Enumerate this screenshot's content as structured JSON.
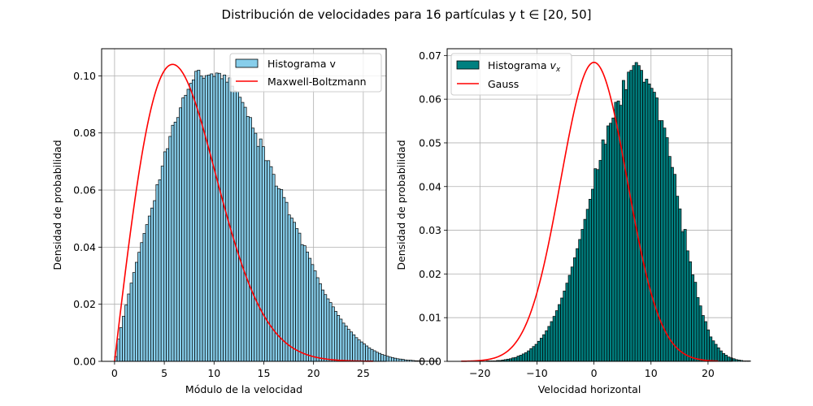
{
  "figure": {
    "title": "Distribución de velocidades para 16 partículas y t ∈ [20, 50]"
  },
  "chart_data": [
    {
      "type": "bar",
      "xlabel": "Módulo de la velocidad",
      "ylabel": "Densidad de probabilidad",
      "xlim": [
        -1.3,
        27.3
      ],
      "ylim": [
        0,
        0.1095
      ],
      "xticks": [
        0,
        5,
        10,
        15,
        20,
        25
      ],
      "yticks": [
        0.0,
        0.02,
        0.04,
        0.06,
        0.08,
        0.1
      ],
      "xtick_labels": [
        "0",
        "5",
        "10",
        "15",
        "20",
        "25"
      ],
      "ytick_labels": [
        "0.00",
        "0.02",
        "0.04",
        "0.06",
        "0.08",
        "0.10"
      ],
      "grid": true,
      "legend_position": "upper right",
      "bin_start": 0.0,
      "bin_width": 0.26,
      "histogram": {
        "name": "Histograma v",
        "color": "#87ceeb",
        "edgecolor": "#000000",
        "values": [
          0.0017,
          0.0078,
          0.0118,
          0.0158,
          0.0197,
          0.0236,
          0.0274,
          0.0311,
          0.0347,
          0.0382,
          0.0416,
          0.0448,
          0.0479,
          0.0509,
          0.0537,
          0.0563,
          0.0619,
          0.0636,
          0.0684,
          0.0734,
          0.0745,
          0.0788,
          0.0827,
          0.0838,
          0.0854,
          0.0888,
          0.0923,
          0.0932,
          0.0953,
          0.0974,
          0.0986,
          0.1016,
          0.102,
          0.1,
          0.0992,
          0.1001,
          0.1003,
          0.1007,
          0.0998,
          0.101,
          0.1009,
          0.099,
          0.1003,
          0.0978,
          0.0993,
          0.0964,
          0.0947,
          0.0945,
          0.0925,
          0.0907,
          0.089,
          0.0858,
          0.0854,
          0.0817,
          0.0799,
          0.0753,
          0.0779,
          0.0752,
          0.0703,
          0.0703,
          0.0682,
          0.0655,
          0.0614,
          0.0605,
          0.0602,
          0.0574,
          0.0557,
          0.0513,
          0.0502,
          0.0487,
          0.0465,
          0.0449,
          0.0409,
          0.0405,
          0.0383,
          0.0361,
          0.0339,
          0.0317,
          0.0293,
          0.0272,
          0.025,
          0.0234,
          0.0219,
          0.0206,
          0.0191,
          0.0175,
          0.0161,
          0.0148,
          0.0134,
          0.0124,
          0.0112,
          0.0103,
          0.0093,
          0.0083,
          0.0075,
          0.0068,
          0.0061,
          0.0054,
          0.0047,
          0.0042,
          0.0037,
          0.0032,
          0.0028,
          0.0024,
          0.0021,
          0.0018,
          0.0015,
          0.0013,
          0.0011,
          0.0009,
          0.0008,
          0.0007,
          0.0005,
          0.0004,
          0.0004,
          0.0003,
          0.0002,
          0.0002,
          0.0002,
          0.0001,
          0.0001,
          0.0001,
          0.0001,
          0.0001,
          0.0001,
          0.0,
          0.0,
          0.0,
          0.0,
          0.0,
          0.0,
          0.0,
          0.0,
          0.0,
          0.0,
          0.0,
          0.0,
          0.0,
          0.0,
          0.0
        ]
      },
      "curve": {
        "name": "Maxwell-Boltzmann",
        "color": "#ff0000",
        "model": "a·v·exp(-a·v²/2)",
        "a": 0.02941,
        "x_range": [
          0,
          26
        ]
      }
    },
    {
      "type": "bar",
      "xlabel": "Velocidad horizontal",
      "ylabel": "Densidad de probabilidad",
      "xlim": [
        -25.75,
        24.15
      ],
      "ylim": [
        0,
        0.07155
      ],
      "xticks": [
        -20,
        -10,
        0,
        10,
        20
      ],
      "yticks": [
        0.0,
        0.01,
        0.02,
        0.03,
        0.04,
        0.05,
        0.06,
        0.07
      ],
      "xtick_labels": [
        "−20",
        "−10",
        "0",
        "10",
        "20"
      ],
      "ytick_labels": [
        "0.00",
        "0.01",
        "0.02",
        "0.03",
        "0.04",
        "0.05",
        "0.06",
        "0.07"
      ],
      "grid": true,
      "legend_position": "upper left",
      "bin_start": -23.4,
      "bin_width": 0.45,
      "histogram": {
        "name": "Histograma v_x",
        "name_main": "Histograma ",
        "name_math": "v",
        "name_sub": "x",
        "color": "#008080",
        "edgecolor": "#000000",
        "values": [
          0.0,
          0.0,
          0.0,
          0.0,
          0.0,
          0.0,
          0.0,
          0.0,
          0.0,
          0.0,
          0.0001,
          0.0001,
          0.0001,
          0.0001,
          0.0002,
          0.0002,
          0.0003,
          0.0004,
          0.0005,
          0.0006,
          0.0008,
          0.0009,
          0.0012,
          0.0014,
          0.0017,
          0.002,
          0.0024,
          0.0029,
          0.0034,
          0.0039,
          0.0046,
          0.0053,
          0.0061,
          0.007,
          0.008,
          0.0091,
          0.0103,
          0.0116,
          0.013,
          0.0145,
          0.0161,
          0.0179,
          0.0197,
          0.0216,
          0.0237,
          0.0258,
          0.0279,
          0.0302,
          0.0325,
          0.0348,
          0.0371,
          0.0394,
          0.0441,
          0.0439,
          0.046,
          0.0507,
          0.0497,
          0.0539,
          0.0545,
          0.0557,
          0.0593,
          0.0596,
          0.0586,
          0.0643,
          0.0622,
          0.0662,
          0.0666,
          0.0677,
          0.0684,
          0.0677,
          0.0666,
          0.0639,
          0.0646,
          0.0635,
          0.0625,
          0.0616,
          0.0603,
          0.0551,
          0.0551,
          0.0534,
          0.0512,
          0.0469,
          0.0444,
          0.0428,
          0.0378,
          0.0349,
          0.0297,
          0.0302,
          0.0253,
          0.0228,
          0.0198,
          0.0181,
          0.0146,
          0.0127,
          0.0105,
          0.0091,
          0.0072,
          0.0056,
          0.0047,
          0.0039,
          0.0031,
          0.0024,
          0.0018,
          0.0014,
          0.001,
          0.0008,
          0.0006,
          0.0004,
          0.0003,
          0.0002,
          0.0001,
          0.0001,
          0.0001,
          0.0,
          0.0,
          0.0,
          0.0,
          0.0,
          0.0,
          0.0,
          0.0,
          0.0,
          0.0,
          0.0,
          0.0,
          0.0,
          0.0,
          0.0,
          0.0,
          0.0,
          0.0,
          0.0,
          0.0,
          0.0,
          0.0,
          0.0,
          0.0,
          0.0,
          0.0,
          0.0,
          0.0,
          0.0,
          0.0,
          0.0
        ]
      },
      "curve": {
        "name": "Gauss",
        "color": "#ff0000",
        "model": "normal",
        "mean": 0.0,
        "std": 5.83,
        "x_range": [
          -23.3,
          21.8
        ]
      }
    }
  ]
}
